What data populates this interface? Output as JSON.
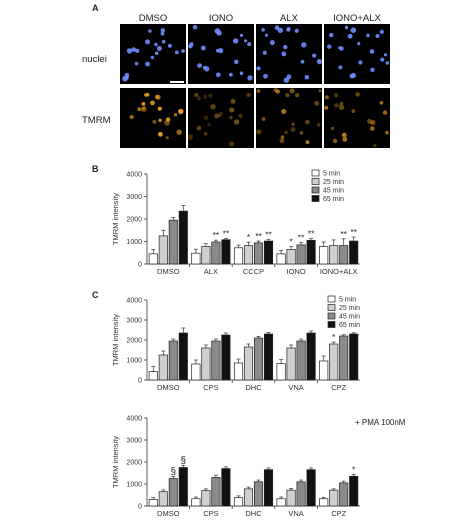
{
  "panelA": {
    "letter": "A",
    "conditions": [
      "DMSO",
      "IONO",
      "ALX",
      "IONO+ALX"
    ],
    "rows": [
      "nuclei",
      "TMRM"
    ],
    "colors": {
      "nuclei": "#6f8cff",
      "tmrm": "#f0a020"
    }
  },
  "panelB": {
    "letter": "B"
  },
  "panelC": {
    "letter": "C",
    "note": "+ PMA 100nM"
  },
  "chart_data": [
    {
      "type": "bar",
      "title": "",
      "xlabel": "",
      "ylabel": "TMRM intensity",
      "ylim": [
        0,
        4000
      ],
      "yticks": [
        0,
        1000,
        2000,
        3000,
        4000
      ],
      "grid": false,
      "legend_position": "top-right",
      "categories": [
        "DMSO",
        "ALX",
        "CCCP",
        "IONO",
        "IONO+ALX"
      ],
      "series": [
        {
          "name": "5 min",
          "color": "#ffffff",
          "values": [
            450,
            480,
            720,
            450,
            780
          ],
          "errors": [
            200,
            180,
            120,
            150,
            200
          ]
        },
        {
          "name": "25 min",
          "color": "#cfcfcf",
          "values": [
            1250,
            780,
            820,
            650,
            820
          ],
          "errors": [
            250,
            120,
            150,
            120,
            250
          ]
        },
        {
          "name": "45 min",
          "color": "#8a8a8a",
          "values": [
            1950,
            980,
            940,
            850,
            820
          ],
          "errors": [
            120,
            80,
            80,
            100,
            300
          ]
        },
        {
          "name": "65 min",
          "color": "#111111",
          "values": [
            2350,
            1080,
            1020,
            1050,
            1020
          ],
          "errors": [
            250,
            60,
            80,
            80,
            180
          ]
        }
      ],
      "annotations": [
        {
          "category": "ALX",
          "series": 2,
          "text": "**"
        },
        {
          "category": "ALX",
          "series": 3,
          "text": "**"
        },
        {
          "category": "CCCP",
          "series": 1,
          "text": "*"
        },
        {
          "category": "CCCP",
          "series": 2,
          "text": "**"
        },
        {
          "category": "CCCP",
          "series": 3,
          "text": "**"
        },
        {
          "category": "IONO",
          "series": 1,
          "text": "*"
        },
        {
          "category": "IONO",
          "series": 2,
          "text": "**"
        },
        {
          "category": "IONO",
          "series": 3,
          "text": "**"
        },
        {
          "category": "IONO+ALX",
          "series": 2,
          "text": "**"
        },
        {
          "category": "IONO+ALX",
          "series": 3,
          "text": "**"
        }
      ]
    },
    {
      "type": "bar",
      "title": "",
      "xlabel": "",
      "ylabel": "TMRM intensity",
      "ylim": [
        0,
        4000
      ],
      "yticks": [
        0,
        1000,
        2000,
        3000,
        4000
      ],
      "grid": false,
      "legend_position": "top-right",
      "categories": [
        "DMSO",
        "CPS",
        "DHC",
        "VNA",
        "CPZ"
      ],
      "series": [
        {
          "name": "5 min",
          "color": "#ffffff",
          "values": [
            420,
            800,
            850,
            820,
            950
          ],
          "errors": [
            250,
            200,
            200,
            200,
            250
          ]
        },
        {
          "name": "25 min",
          "color": "#cfcfcf",
          "values": [
            1250,
            1600,
            1650,
            1600,
            1800
          ],
          "errors": [
            200,
            150,
            150,
            150,
            100
          ]
        },
        {
          "name": "45 min",
          "color": "#8a8a8a",
          "values": [
            1950,
            1950,
            2100,
            1950,
            2200
          ],
          "errors": [
            100,
            100,
            80,
            100,
            60
          ]
        },
        {
          "name": "65 min",
          "color": "#111111",
          "values": [
            2350,
            2250,
            2300,
            2350,
            2300
          ],
          "errors": [
            250,
            100,
            80,
            100,
            60
          ]
        }
      ],
      "annotations": [
        {
          "category": "CPZ",
          "series": 1,
          "text": "*"
        }
      ]
    },
    {
      "type": "bar",
      "title": "",
      "xlabel": "",
      "ylabel": "TMRM intensity",
      "ylim": [
        0,
        4000
      ],
      "yticks": [
        0,
        1000,
        2000,
        3000,
        4000
      ],
      "grid": false,
      "categories": [
        "DMSO",
        "CPS",
        "DHC",
        "VNA",
        "CPZ"
      ],
      "series": [
        {
          "name": "5 min",
          "color": "#ffffff",
          "values": [
            300,
            330,
            380,
            330,
            330
          ],
          "errors": [
            80,
            80,
            80,
            80,
            60
          ]
        },
        {
          "name": "25 min",
          "color": "#cfcfcf",
          "values": [
            650,
            700,
            780,
            720,
            720
          ],
          "errors": [
            80,
            80,
            80,
            80,
            60
          ]
        },
        {
          "name": "45 min",
          "color": "#8a8a8a",
          "values": [
            1250,
            1300,
            1100,
            1100,
            1050
          ],
          "errors": [
            100,
            100,
            80,
            80,
            80
          ]
        },
        {
          "name": "65 min",
          "color": "#111111",
          "values": [
            1750,
            1700,
            1650,
            1650,
            1350
          ],
          "errors": [
            100,
            80,
            80,
            80,
            80
          ]
        }
      ],
      "annotations": [
        {
          "category": "DMSO",
          "series": 2,
          "text": "§"
        },
        {
          "category": "DMSO",
          "series": 3,
          "text": "§"
        },
        {
          "category": "CPZ",
          "series": 3,
          "text": "*"
        }
      ]
    }
  ]
}
